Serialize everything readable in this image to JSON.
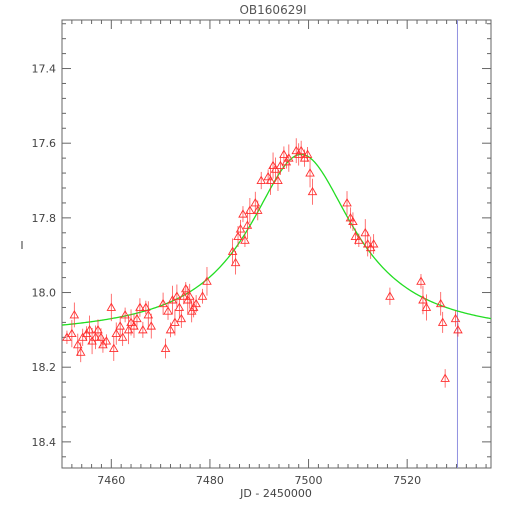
{
  "chart_data": {
    "type": "scatter",
    "title": "OB160629I",
    "xlabel": "JD - 2450000",
    "ylabel": "I",
    "xlim": [
      7450,
      7537
    ],
    "ylim": [
      18.47,
      17.27
    ],
    "y_inverted": true,
    "grid": false,
    "legend": "none",
    "x_ticks": [
      7460,
      7480,
      7500,
      7520
    ],
    "x_tick_labels": [
      "7460",
      "7480",
      "7500",
      "7520"
    ],
    "y_ticks": [
      17.4,
      17.6,
      17.8,
      18.0,
      18.2,
      18.4
    ],
    "y_tick_labels": [
      "17.4",
      "17.6",
      "17.8",
      "18.0",
      "18.2",
      "18.4"
    ],
    "colors": {
      "points": "#ff3030",
      "model": "#22dd22",
      "marker_line": "#9090e0",
      "axes": "#666666"
    },
    "marker_line_x": 7530.2,
    "model": {
      "label": "",
      "baseline": 18.12,
      "peak": 17.63,
      "t0": 7498.5,
      "width": 13
    },
    "series": [
      {
        "type": "points",
        "marker": "triangle-open",
        "x": [
          7451,
          7452,
          7452.5,
          7453.2,
          7453.8,
          7454.2,
          7455,
          7455.6,
          7456.1,
          7456.8,
          7457.3,
          7457.9,
          7458.3,
          7459,
          7460,
          7460.5,
          7461,
          7461.8,
          7462.3,
          7462.8,
          7463.5,
          7464,
          7464.6,
          7465.2,
          7465.8,
          7466.4,
          7467,
          7467.5,
          7468.1,
          7470.5,
          7471,
          7471.5,
          7472,
          7472.4,
          7472.9,
          7473.3,
          7473.8,
          7474.2,
          7474.7,
          7475.1,
          7475.5,
          7475.9,
          7476.3,
          7476.7,
          7477.2,
          7478.5,
          7479.4,
          7484.6,
          7485.2,
          7485.7,
          7486.2,
          7486.7,
          7487.1,
          7487.6,
          7488.1,
          7489.2,
          7489.7,
          7490.4,
          7491.8,
          7492.3,
          7492.8,
          7493.3,
          7493.8,
          7494.3,
          7495,
          7495.5,
          7496,
          7497.5,
          7498,
          7498.5,
          7499.2,
          7499.8,
          7500.3,
          7500.8,
          7507.8,
          7508.5,
          7509,
          7509.5,
          7510.2,
          7511.5,
          7512,
          7512.6,
          7513.2,
          7516.5,
          7522.8,
          7523.2,
          7523.9,
          7526.8,
          7527.2,
          7527.7,
          7529.8,
          7530.3
        ],
        "y": [
          18.12,
          18.11,
          18.06,
          18.14,
          18.16,
          18.12,
          18.11,
          18.1,
          18.13,
          18.12,
          18.1,
          18.12,
          18.14,
          18.13,
          18.04,
          18.15,
          18.11,
          18.09,
          18.12,
          18.06,
          18.1,
          18.08,
          18.09,
          18.07,
          18.04,
          18.1,
          18.04,
          18.06,
          18.09,
          18.03,
          18.15,
          18.05,
          18.1,
          18.02,
          18.08,
          18.01,
          18.04,
          18.07,
          18.01,
          17.99,
          18.02,
          18.01,
          18.05,
          18.04,
          18.03,
          18.01,
          17.97,
          17.89,
          17.92,
          17.85,
          17.83,
          17.79,
          17.86,
          17.82,
          17.78,
          17.76,
          17.78,
          17.7,
          17.69,
          17.7,
          17.66,
          17.67,
          17.7,
          17.66,
          17.63,
          17.65,
          17.64,
          17.62,
          17.63,
          17.62,
          17.64,
          17.63,
          17.68,
          17.73,
          17.76,
          17.8,
          17.81,
          17.85,
          17.86,
          17.84,
          17.87,
          17.88,
          17.87,
          18.01,
          17.97,
          18.02,
          18.04,
          18.03,
          18.08,
          18.23,
          18.07,
          18.1
        ]
      }
    ]
  }
}
